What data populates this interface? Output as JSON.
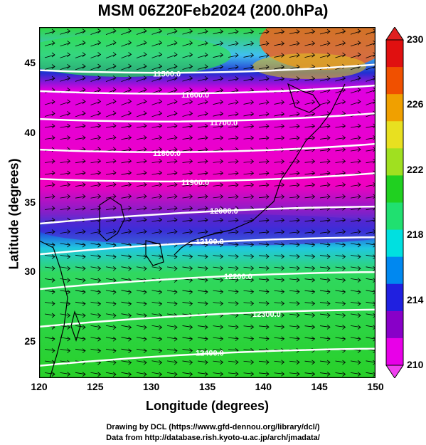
{
  "title": "MSM 06Z20Feb2024 (200.0hPa)",
  "x_axis": {
    "label": "Longitude (degrees)",
    "ticks": [
      "120",
      "125",
      "130",
      "135",
      "140",
      "145",
      "150"
    ],
    "range": [
      120,
      150
    ]
  },
  "y_axis": {
    "label": "Latitude  (degrees)",
    "ticks": [
      "25",
      "30",
      "35",
      "40",
      "45"
    ],
    "range": [
      22.4,
      47.6
    ]
  },
  "colorbar": {
    "ticks": [
      "210",
      "214",
      "218",
      "222",
      "226",
      "230"
    ],
    "range": [
      210,
      230
    ],
    "colors": [
      "#e800e8",
      "#8800c8",
      "#2020e0",
      "#0088f0",
      "#00e0e0",
      "#20e070",
      "#20d020",
      "#a0e020",
      "#e8e020",
      "#f0a000",
      "#f05000",
      "#e01010"
    ]
  },
  "contours": [
    {
      "label": "11500.0",
      "lat": 44.5
    },
    {
      "label": "11600.0",
      "lat": 43.0
    },
    {
      "label": "11700.0",
      "lat": 41.0
    },
    {
      "label": "11800.0",
      "lat": 38.8
    },
    {
      "label": "11900.0",
      "lat": 36.7
    },
    {
      "label": "12000.0",
      "lat": 34.2
    },
    {
      "label": "12100.0",
      "lat": 32.0
    },
    {
      "label": "12200.0",
      "lat": 29.5
    },
    {
      "label": "12300.0",
      "lat": 26.8
    },
    {
      "label": "12400.0",
      "lat": 24.0
    }
  ],
  "credits": [
    "Drawing by DCL (https://www.gfd-dennou.org/library/dcl/)",
    "Data from http://database.rish.kyoto-u.ac.jp/arch/jmadata/"
  ]
}
